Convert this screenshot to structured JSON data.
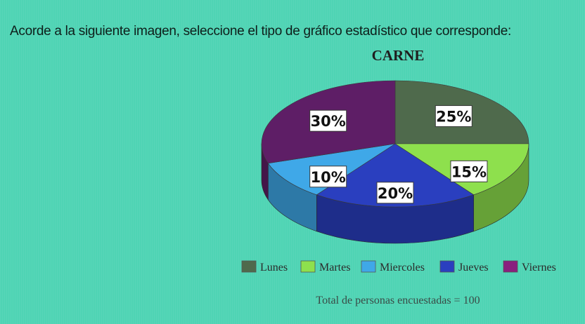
{
  "question": "Acorde a la siguiente imagen, seleccione el tipo de gráfico estadístico que corresponde:",
  "chart_data": {
    "type": "pie",
    "title": "CARNE",
    "slices": [
      {
        "name": "Lunes",
        "value": 25,
        "label": "25%",
        "color": "#4f6a4c"
      },
      {
        "name": "Martes",
        "value": 15,
        "label": "15%",
        "color": "#8ee04d"
      },
      {
        "name": "Jueves",
        "value": 20,
        "label": "20%",
        "color": "#2a3fbf"
      },
      {
        "name": "Miercoles",
        "value": 10,
        "label": "10%",
        "color": "#3fa8e8"
      },
      {
        "name": "Viernes",
        "value": 30,
        "label": "30%",
        "color": "#5e1e66"
      }
    ],
    "legend": [
      {
        "name": "Lunes",
        "color": "#4f6a4c"
      },
      {
        "name": "Martes",
        "color": "#8ee04d"
      },
      {
        "name": "Miercoles",
        "color": "#3fa8e8"
      },
      {
        "name": "Jueves",
        "color": "#2a3fbf"
      },
      {
        "name": "Viernes",
        "color": "#8a1f7e"
      }
    ],
    "legend_position": "bottom",
    "note": "Total de personas encuestadas = 100"
  }
}
